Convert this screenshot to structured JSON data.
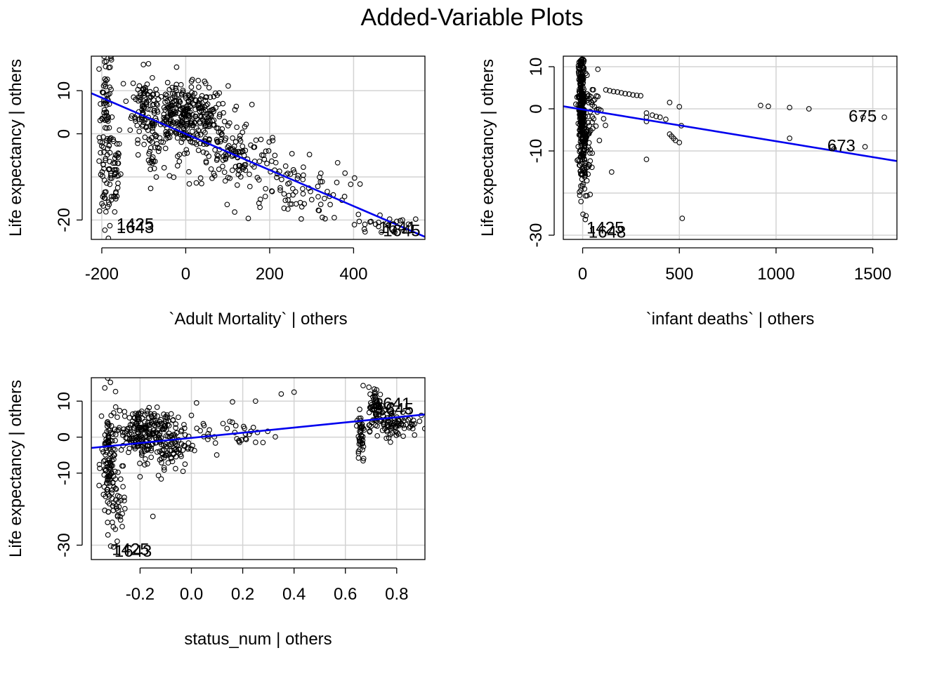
{
  "title": "Added-Variable Plots",
  "colors": {
    "line": "#0000ee",
    "points": "#000000",
    "grid": "#d3d3d3"
  },
  "chart_data": [
    {
      "type": "scatter",
      "xlabel": "`Adult Mortality` | others",
      "ylabel": "Life expectancy  | others",
      "xlim": [
        -225,
        570
      ],
      "ylim": [
        -24.5,
        18
      ],
      "xticks": [
        -200,
        0,
        200,
        400
      ],
      "xtick_labels": [
        "-200",
        "0",
        "200",
        "400"
      ],
      "yticks": [
        -20,
        0,
        10
      ],
      "ytick_labels": [
        "-20",
        "0",
        "10"
      ],
      "grid_x": [
        -200,
        0,
        200,
        400
      ],
      "grid_y": [
        -20,
        -10,
        0,
        10
      ],
      "grid": true,
      "fit_line": {
        "x": [
          -225,
          570
        ],
        "y": [
          9.4,
          -23.9
        ]
      },
      "clusters": [
        {
          "x": -190,
          "y": 0,
          "sx": 8,
          "sy": 12,
          "n": 110
        },
        {
          "x": -170,
          "y": -8,
          "sx": 8,
          "sy": 6,
          "n": 40
        },
        {
          "x": -100,
          "y": 7,
          "sx": 14,
          "sy": 4,
          "n": 70
        },
        {
          "x": -80,
          "y": -2,
          "sx": 6,
          "sy": 5,
          "n": 30
        },
        {
          "x": 0,
          "y": 4,
          "sx": 50,
          "sy": 3.5,
          "n": 330
        },
        {
          "x": 110,
          "y": -5,
          "sx": 60,
          "sy": 4,
          "n": 130
        },
        {
          "x": 250,
          "y": -13,
          "sx": 70,
          "sy": 3.5,
          "n": 80
        },
        {
          "x": 470,
          "y": -21,
          "sx": 35,
          "sy": 1.2,
          "n": 25
        }
      ],
      "annotations": [
        {
          "text": "1425",
          "x": -165,
          "y": -21.3
        },
        {
          "text": "1643",
          "x": -165,
          "y": -22
        },
        {
          "text": "1641",
          "x": 460,
          "y": -22
        },
        {
          "text": "1645",
          "x": 470,
          "y": -22.7
        }
      ]
    },
    {
      "type": "scatter",
      "xlabel": "`infant deaths` | others",
      "ylabel": "Life expectancy  | others",
      "xlim": [
        -100,
        1625
      ],
      "ylim": [
        -31,
        12.5
      ],
      "xticks": [
        0,
        500,
        1000,
        1500
      ],
      "xtick_labels": [
        "0",
        "500",
        "1000",
        "1500"
      ],
      "yticks": [
        -30,
        -10,
        0,
        10
      ],
      "ytick_labels": [
        "-30",
        "-10",
        "0",
        "10"
      ],
      "grid_x": [
        0,
        500,
        1000,
        1500
      ],
      "grid_y": [
        -30,
        -20,
        -10,
        0,
        10
      ],
      "grid": true,
      "fit_line": {
        "x": [
          -100,
          1625
        ],
        "y": [
          0.6,
          -12.4
        ]
      },
      "clusters": [
        {
          "x": -5,
          "y": 0,
          "sx": 8,
          "sy": 7,
          "n": 320
        },
        {
          "x": 15,
          "y": -12,
          "sx": 12,
          "sy": 6,
          "n": 60
        },
        {
          "x": 50,
          "y": -1,
          "sx": 25,
          "sy": 4,
          "n": 40
        }
      ],
      "points": [
        [
          120,
          4.5
        ],
        [
          140,
          4.3
        ],
        [
          160,
          4.1
        ],
        [
          180,
          4
        ],
        [
          200,
          3.8
        ],
        [
          220,
          3.6
        ],
        [
          240,
          3.5
        ],
        [
          260,
          3.3
        ],
        [
          280,
          3.2
        ],
        [
          300,
          3.1
        ],
        [
          330,
          -1
        ],
        [
          330,
          -2
        ],
        [
          330,
          -3
        ],
        [
          360,
          -1.5
        ],
        [
          380,
          -1.8
        ],
        [
          400,
          -2
        ],
        [
          430,
          -2.5
        ],
        [
          450,
          -6
        ],
        [
          460,
          -6.5
        ],
        [
          470,
          -7
        ],
        [
          480,
          -7.5
        ],
        [
          500,
          -8
        ],
        [
          510,
          -4
        ],
        [
          450,
          1.5
        ],
        [
          500,
          0.5
        ],
        [
          330,
          -12
        ],
        [
          150,
          -15
        ],
        [
          920,
          0.8
        ],
        [
          960,
          0.6
        ],
        [
          1070,
          0.3
        ],
        [
          1170,
          0
        ],
        [
          1070,
          -7
        ],
        [
          1290,
          -9
        ],
        [
          1300,
          -9.5
        ],
        [
          1460,
          -9
        ],
        [
          1450,
          -2
        ],
        [
          1560,
          -2
        ],
        [
          515,
          -26
        ]
      ],
      "annotations": [
        {
          "text": "675",
          "x": 1375,
          "y": -2
        },
        {
          "text": "673",
          "x": 1265,
          "y": -9
        },
        {
          "text": "1425",
          "x": 20,
          "y": -28.5
        },
        {
          "text": "1648",
          "x": 30,
          "y": -29.5
        }
      ]
    },
    {
      "type": "scatter",
      "xlabel": "status_num | others",
      "ylabel": "Life expectancy  | others",
      "xlim": [
        -0.39,
        0.91
      ],
      "ylim": [
        -34,
        16.5
      ],
      "xticks": [
        -0.2,
        0.0,
        0.2,
        0.4,
        0.6,
        0.8
      ],
      "xtick_labels": [
        "-0.2",
        "0.0",
        "0.2",
        "0.4",
        "0.6",
        "0.8"
      ],
      "yticks": [
        -30,
        -10,
        0,
        10
      ],
      "ytick_labels": [
        "-30",
        "-10",
        "0",
        "10"
      ],
      "grid_x": [
        -0.2,
        0.0,
        0.2,
        0.4,
        0.6,
        0.8
      ],
      "grid_y": [
        -30,
        -20,
        -10,
        0,
        10
      ],
      "grid": true,
      "fit_line": {
        "x": [
          -0.39,
          0.91
        ],
        "y": [
          -3,
          6.3
        ]
      },
      "clusters": [
        {
          "x": -0.32,
          "y": -8,
          "sx": 0.015,
          "sy": 9,
          "n": 120
        },
        {
          "x": -0.29,
          "y": -20,
          "sx": 0.015,
          "sy": 4,
          "n": 30
        },
        {
          "x": -0.2,
          "y": 2,
          "sx": 0.05,
          "sy": 3,
          "n": 170
        },
        {
          "x": -0.1,
          "y": -2,
          "sx": 0.05,
          "sy": 4,
          "n": 120
        },
        {
          "x": 0.15,
          "y": 1,
          "sx": 0.1,
          "sy": 2.5,
          "n": 40
        },
        {
          "x": 0.66,
          "y": 1,
          "sx": 0.008,
          "sy": 4,
          "n": 40
        },
        {
          "x": 0.72,
          "y": 8,
          "sx": 0.015,
          "sy": 3,
          "n": 70
        },
        {
          "x": 0.8,
          "y": 4,
          "sx": 0.04,
          "sy": 2,
          "n": 80
        }
      ],
      "points": [
        [
          0.35,
          12
        ],
        [
          0.4,
          12.5
        ],
        [
          0.25,
          10
        ],
        [
          0.02,
          9.5
        ],
        [
          0.16,
          9.8
        ],
        [
          -0.15,
          -22
        ],
        [
          -0.27,
          -8
        ],
        [
          -0.2,
          -11
        ]
      ],
      "annotations": [
        {
          "text": "1425",
          "x": -0.31,
          "y": -31.5
        },
        {
          "text": "1643",
          "x": -0.3,
          "y": -32
        },
        {
          "text": "1641",
          "x": 0.71,
          "y": 9
        },
        {
          "text": "1645",
          "x": 0.72,
          "y": 7.5
        }
      ]
    }
  ]
}
